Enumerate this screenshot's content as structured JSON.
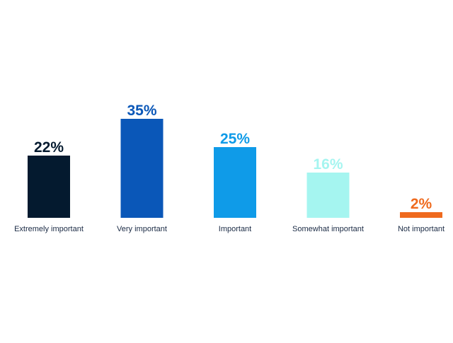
{
  "chart_data": {
    "type": "bar",
    "categories": [
      "Extremely important",
      "Very important",
      "Important",
      "Somewhat important",
      "Not important"
    ],
    "values": [
      22,
      35,
      25,
      16,
      2
    ],
    "value_labels": [
      "22%",
      "35%",
      "25%",
      "16%",
      "2%"
    ],
    "colors": [
      "#041a2f",
      "#0a57b8",
      "#0f9be8",
      "#a5f5f0",
      "#ef6a1e"
    ]
  }
}
